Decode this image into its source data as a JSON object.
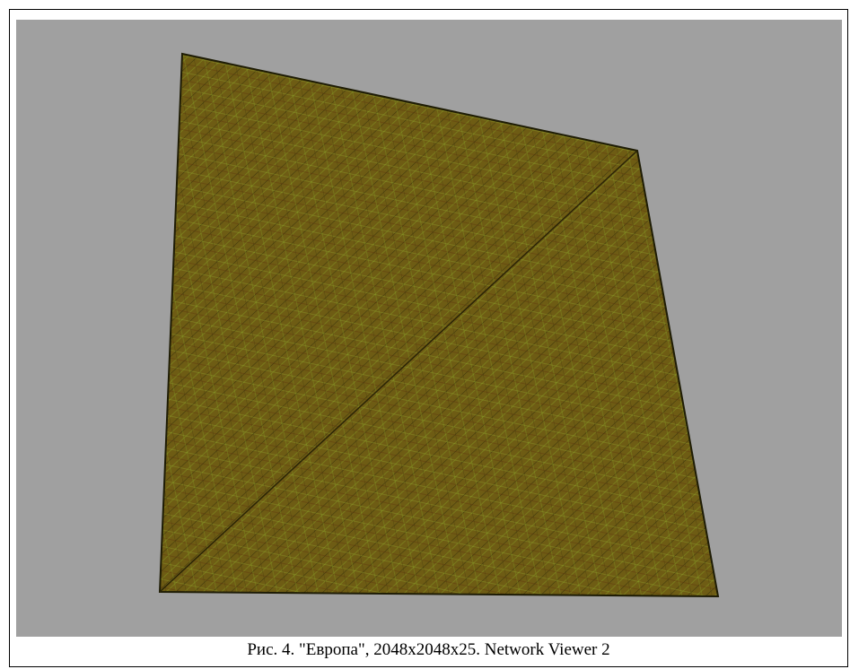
{
  "figure": {
    "caption": "Рис. 4. \"Европа\", 2048x2048x25. Network Viewer 2"
  }
}
